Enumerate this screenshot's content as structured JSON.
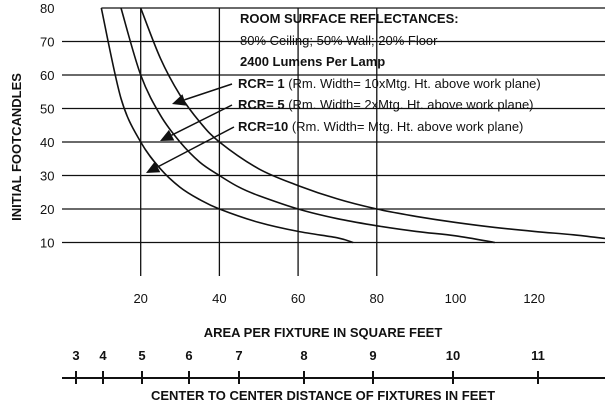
{
  "chart_data": {
    "type": "line",
    "xlabel": "AREA PER FIXTURE IN SQUARE FEET",
    "ylabel": "INITIAL FOOTCANDLES",
    "xlim": [
      0,
      138
    ],
    "ylim": [
      0,
      80
    ],
    "x_ticks": [
      20,
      40,
      60,
      80,
      100,
      120
    ],
    "y_ticks": [
      10,
      20,
      30,
      40,
      50,
      60,
      70,
      80
    ],
    "x_gridlines": [
      20,
      40,
      60,
      80
    ],
    "grid": true,
    "series": [
      {
        "name": "RCR= 1",
        "x": [
          20,
          25,
          30,
          35,
          40,
          50,
          60,
          70,
          80,
          90,
          100,
          110,
          120,
          130,
          138
        ],
        "y": [
          80,
          65,
          54,
          46,
          40,
          32,
          27,
          23,
          20,
          17.8,
          16,
          14.5,
          13.3,
          12.3,
          11.2
        ]
      },
      {
        "name": "RCR= 5",
        "x": [
          15,
          20,
          25,
          30,
          35,
          40,
          45,
          50,
          60,
          70,
          80,
          90,
          100,
          110
        ],
        "y": [
          80,
          60,
          48,
          40,
          34,
          30,
          26.5,
          24,
          20,
          17.1,
          15,
          13.3,
          12,
          10
        ]
      },
      {
        "name": "RCR=10",
        "x": [
          10,
          15,
          20,
          25,
          30,
          35,
          40,
          50,
          60,
          70,
          74
        ],
        "y": [
          80,
          53,
          40,
          32,
          26.5,
          22.8,
          20,
          16,
          13.3,
          11.4,
          10
        ]
      }
    ],
    "secondary_axis": {
      "label": "CENTER TO CENTER DISTANCE OF FIXTURES IN FEET",
      "ticks": [
        "3",
        "4",
        "5",
        "6",
        "7",
        "8",
        "9",
        "10",
        "11"
      ]
    },
    "annotations": {
      "title": "ROOM SURFACE REFLECTANCES:",
      "line1": "80% Ceiling; 50% Wall; 20% Floor",
      "line2": "2400 Lumens Per Lamp",
      "legend": [
        {
          "key": "RCR= 1",
          "desc": "(Rm. Width= 10xMtg. Ht. above work plane)"
        },
        {
          "key": "RCR= 5",
          "desc": "(Rm. Width= 2xMtg. Ht. above work plane)"
        },
        {
          "key": "RCR=10",
          "desc": "(Rm. Width= Mtg. Ht. above work plane)"
        }
      ]
    }
  }
}
